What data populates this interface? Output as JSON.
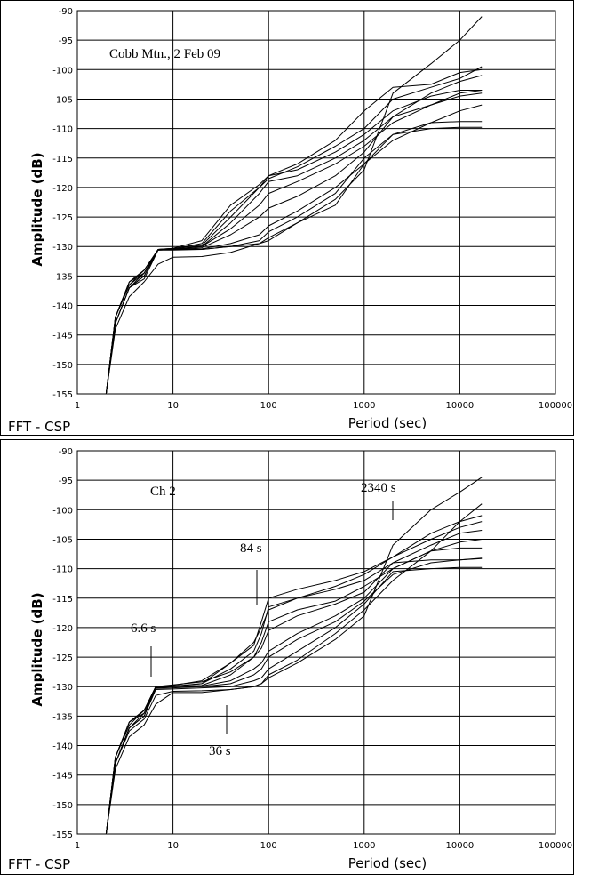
{
  "chart_data": [
    {
      "type": "line",
      "title": "Cobb Mtn., 2 Feb 09",
      "xlabel": "Period (sec)",
      "ylabel": "Amplitude (dB)",
      "footer": "FFT - CSP",
      "xscale": "log",
      "xlim": [
        1,
        100000
      ],
      "ylim": [
        -155,
        -90
      ],
      "xticks": [
        "1",
        "10",
        "100",
        "1000",
        "10000",
        "100000"
      ],
      "yticks": [
        "-90",
        "-95",
        "-100",
        "-105",
        "-110",
        "-115",
        "-120",
        "-125",
        "-130",
        "-135",
        "-140",
        "-145",
        "-150",
        "-155"
      ],
      "grid": true,
      "series": [
        {
          "x": [
            2,
            2.5,
            3.5,
            5,
            7,
            10,
            20,
            40,
            80,
            100,
            200,
            500,
            1000,
            2000,
            5000,
            10000,
            17000
          ],
          "y": [
            -155,
            -142,
            -136,
            -134,
            -130.5,
            -130.3,
            -129,
            -123,
            -119.5,
            -118,
            -116,
            -112,
            -107,
            -103,
            -102.5,
            -100.5,
            -100
          ]
        },
        {
          "x": [
            2,
            2.5,
            3.5,
            5,
            7,
            10,
            20,
            40,
            80,
            100,
            200,
            500,
            1000,
            2000,
            5000,
            10000,
            17000
          ],
          "y": [
            -155,
            -143,
            -137,
            -134.5,
            -130.5,
            -130.4,
            -129.5,
            -124,
            -120,
            -118.5,
            -116.5,
            -113,
            -110,
            -105,
            -103,
            -101.5,
            -99.5
          ]
        },
        {
          "x": [
            2,
            2.5,
            3.5,
            5,
            7,
            10,
            20,
            40,
            80,
            100,
            200,
            500,
            1000,
            2000,
            5000,
            10000,
            17000
          ],
          "y": [
            -155,
            -142,
            -136.5,
            -134,
            -130.6,
            -130.5,
            -130,
            -126,
            -121,
            -119,
            -118,
            -115,
            -112,
            -108,
            -104,
            -102,
            -101
          ]
        },
        {
          "x": [
            2,
            2.5,
            3.5,
            5,
            7,
            10,
            20,
            40,
            80,
            100,
            200,
            500,
            1000,
            2000,
            5000,
            10000,
            17000
          ],
          "y": [
            -155,
            -143,
            -137,
            -135,
            -130.5,
            -130.4,
            -130,
            -127,
            -123,
            -121,
            -119,
            -116,
            -113,
            -109,
            -106,
            -104,
            -103.5
          ]
        },
        {
          "x": [
            2,
            2.5,
            3.5,
            5,
            7,
            10,
            20,
            40,
            80,
            100,
            200,
            500,
            1000,
            2000,
            5000,
            10000,
            17000
          ],
          "y": [
            -155,
            -142,
            -136,
            -134.5,
            -130.6,
            -130.5,
            -130.2,
            -128,
            -125,
            -123.5,
            -121.5,
            -118,
            -114,
            -108,
            -106,
            -104.5,
            -104
          ]
        },
        {
          "x": [
            2,
            2.5,
            3.5,
            5,
            7,
            10,
            20,
            40,
            80,
            100,
            200,
            500,
            1000,
            2000,
            5000,
            10000,
            17000
          ],
          "y": [
            -155,
            -143,
            -137,
            -135,
            -130.5,
            -130.5,
            -130.4,
            -129.5,
            -128,
            -126.5,
            -124,
            -120,
            -116,
            -112,
            -109,
            -107,
            -106
          ]
        },
        {
          "x": [
            2,
            2.5,
            3.5,
            5,
            7,
            10,
            20,
            40,
            80,
            100,
            200,
            500,
            1000,
            2000,
            5000,
            10000,
            17000
          ],
          "y": [
            -155,
            -142,
            -136,
            -134,
            -130.5,
            -130.5,
            -130.5,
            -130,
            -129,
            -127.5,
            -125,
            -121,
            -115,
            -111,
            -109,
            -108.8,
            -108.8
          ]
        },
        {
          "x": [
            2,
            2.5,
            3.5,
            5,
            7,
            10,
            20,
            40,
            80,
            100,
            200,
            500,
            1000,
            2000,
            5000,
            10000,
            17000
          ],
          "y": [
            -155,
            -143,
            -137,
            -135.5,
            -130.6,
            -130.6,
            -130.5,
            -130,
            -129.5,
            -128.5,
            -126,
            -123,
            -116,
            -111,
            -110,
            -109.8,
            -109.8
          ]
        },
        {
          "x": [
            2,
            2.5,
            3.5,
            5,
            7,
            10,
            20,
            40,
            80,
            100,
            200,
            500,
            1000,
            2000,
            5000,
            10000,
            17000
          ],
          "y": [
            -155,
            -144,
            -138.5,
            -136,
            -133,
            -131.8,
            -131.7,
            -131,
            -129.5,
            -129,
            -126,
            -122,
            -117,
            -104,
            -99,
            -95,
            -91
          ]
        },
        {
          "x": [
            2,
            2.5,
            3.5,
            5,
            7,
            10,
            20,
            40,
            80,
            100,
            200,
            500,
            1000,
            2000,
            5000,
            10000,
            17000
          ],
          "y": [
            -155,
            -142,
            -136.5,
            -134.5,
            -130.5,
            -130.3,
            -129.8,
            -125,
            -120,
            -118,
            -117,
            -114,
            -111,
            -107,
            -104.5,
            -103.5,
            -103.5
          ]
        }
      ]
    },
    {
      "type": "line",
      "title": "Ch 2",
      "xlabel": "Period (sec)",
      "ylabel": "Amplitude (dB)",
      "footer": "FFT - CSP",
      "xscale": "log",
      "xlim": [
        1,
        100000
      ],
      "ylim": [
        -155,
        -90
      ],
      "xticks": [
        "1",
        "10",
        "100",
        "1000",
        "10000",
        "100000"
      ],
      "yticks": [
        "-90",
        "-95",
        "-100",
        "-105",
        "-110",
        "-115",
        "-120",
        "-125",
        "-130",
        "-135",
        "-140",
        "-145",
        "-150",
        "-155"
      ],
      "grid": true,
      "annotations": [
        {
          "text": "6.6 s",
          "x": 6.6,
          "y": -129
        },
        {
          "text": "36 s",
          "x": 36,
          "y": -133
        },
        {
          "text": "84 s",
          "x": 84,
          "y": -117
        },
        {
          "text": "2340 s",
          "x": 2340,
          "y": -102
        }
      ],
      "series": [
        {
          "x": [
            2,
            2.5,
            3.5,
            5,
            6.6,
            10,
            20,
            40,
            70,
            84,
            100,
            200,
            500,
            1000,
            2000,
            5000,
            10000,
            17000
          ],
          "y": [
            -155,
            -142,
            -136,
            -134,
            -130,
            -129.8,
            -129,
            -126,
            -123,
            -119,
            -115,
            -113.5,
            -112,
            -110.5,
            -108,
            -104,
            -102,
            -101
          ]
        },
        {
          "x": [
            2,
            2.5,
            3.5,
            5,
            6.6,
            10,
            20,
            40,
            70,
            84,
            100,
            200,
            500,
            1000,
            2000,
            5000,
            10000,
            17000
          ],
          "y": [
            -155,
            -143,
            -137,
            -134.5,
            -130,
            -129.9,
            -129.5,
            -127,
            -124,
            -121,
            -116.5,
            -115,
            -113,
            -111,
            -108,
            -105,
            -103,
            -102
          ]
        },
        {
          "x": [
            2,
            2.5,
            3.5,
            5,
            6.6,
            10,
            20,
            40,
            70,
            84,
            100,
            200,
            500,
            1000,
            2000,
            5000,
            10000,
            17000
          ],
          "y": [
            -155,
            -142,
            -136.5,
            -134,
            -130.2,
            -130,
            -129.8,
            -128,
            -125,
            -123.5,
            -120.5,
            -118,
            -116,
            -114,
            -109,
            -106,
            -104,
            -103.5
          ]
        },
        {
          "x": [
            2,
            2.5,
            3.5,
            5,
            6.6,
            10,
            20,
            40,
            70,
            84,
            100,
            200,
            500,
            1000,
            2000,
            5000,
            10000,
            17000
          ],
          "y": [
            -155,
            -143,
            -137,
            -135,
            -130,
            -130,
            -129.9,
            -129,
            -127,
            -126,
            -124,
            -121,
            -118,
            -115,
            -110,
            -107,
            -106.5,
            -106.5
          ]
        },
        {
          "x": [
            2,
            2.5,
            3.5,
            5,
            6.6,
            10,
            20,
            40,
            70,
            84,
            100,
            200,
            500,
            1000,
            2000,
            5000,
            10000,
            17000
          ],
          "y": [
            -155,
            -142,
            -136,
            -134.5,
            -130.3,
            -130.2,
            -130,
            -129.5,
            -128,
            -127,
            -125,
            -122,
            -119,
            -115.5,
            -111,
            -109,
            -108.5,
            -108.2
          ]
        },
        {
          "x": [
            2,
            2.5,
            3.5,
            5,
            6.6,
            10,
            20,
            40,
            70,
            84,
            100,
            200,
            500,
            1000,
            2000,
            5000,
            10000,
            17000
          ],
          "y": [
            -155,
            -143,
            -137,
            -135,
            -130.5,
            -130.4,
            -130.2,
            -130,
            -129,
            -128.5,
            -127,
            -124,
            -120,
            -116,
            -110.5,
            -110,
            -109.8,
            -109.8
          ]
        },
        {
          "x": [
            2,
            2.5,
            3.5,
            5,
            6.6,
            10,
            20,
            40,
            70,
            84,
            100,
            200,
            500,
            1000,
            2000,
            5000,
            10000,
            17000
          ],
          "y": [
            -155,
            -142,
            -136,
            -134,
            -130.2,
            -130,
            -129.5,
            -126,
            -122.5,
            -120,
            -117,
            -115,
            -113.5,
            -112,
            -109,
            -108.5,
            -108.5,
            -108.3
          ]
        },
        {
          "x": [
            2,
            2.5,
            3.5,
            5,
            6.6,
            10,
            20,
            40,
            70,
            84,
            100,
            200,
            500,
            1000,
            2000,
            5000,
            10000,
            17000
          ],
          "y": [
            -155,
            -144,
            -138.5,
            -136.5,
            -133,
            -131,
            -131,
            -130.5,
            -130,
            -129.5,
            -128.5,
            -126,
            -122,
            -118,
            -106,
            -100,
            -97,
            -94.5
          ]
        },
        {
          "x": [
            2,
            2.5,
            3.5,
            5,
            6.6,
            10,
            20,
            40,
            70,
            84,
            100,
            200,
            500,
            1000,
            2000,
            5000,
            10000,
            17000
          ],
          "y": [
            -155,
            -143,
            -137.5,
            -135.5,
            -131.5,
            -130.8,
            -130.7,
            -130.5,
            -130,
            -129.5,
            -128,
            -125.5,
            -121,
            -117,
            -112,
            -107,
            -102,
            -99
          ]
        },
        {
          "x": [
            2,
            2.5,
            3.5,
            5,
            6.6,
            10,
            20,
            40,
            70,
            84,
            100,
            200,
            500,
            1000,
            2000,
            5000,
            10000,
            17000
          ],
          "y": [
            -155,
            -142,
            -136,
            -134,
            -130,
            -129.7,
            -129.2,
            -127.5,
            -125,
            -122.5,
            -119,
            -117,
            -115.5,
            -113,
            -110,
            -107,
            -105.5,
            -105
          ]
        }
      ]
    }
  ]
}
